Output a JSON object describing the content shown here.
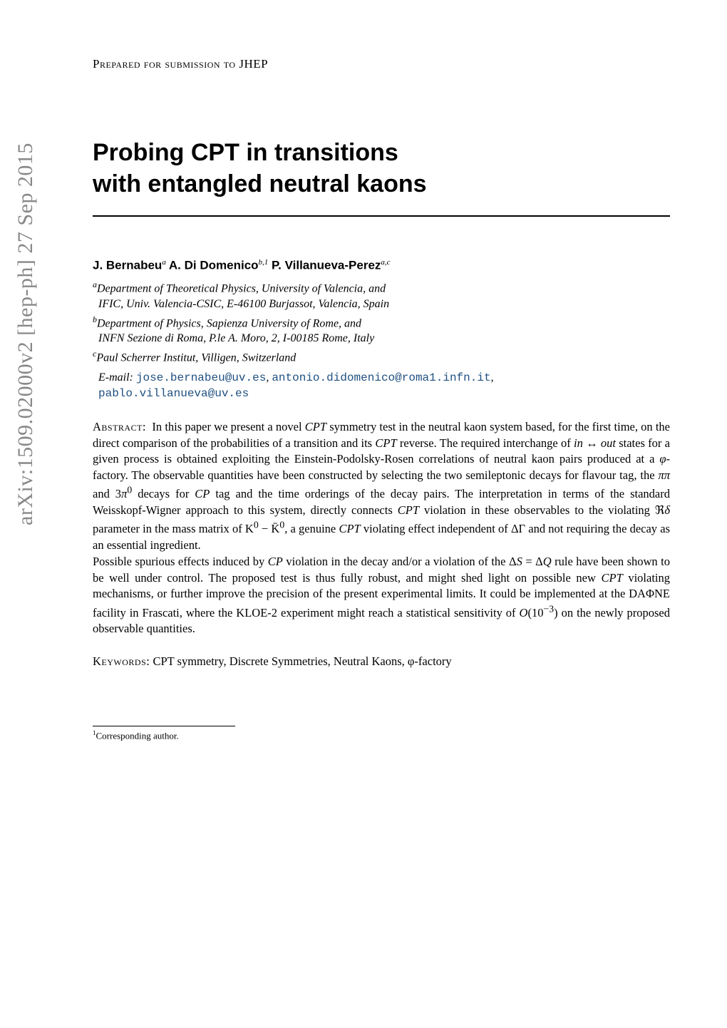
{
  "arxiv": "arXiv:1509.02000v2  [hep-ph]  27 Sep 2015",
  "prepared": "Prepared for submission to JHEP",
  "title_line1": "Probing CPT in transitions",
  "title_line2": "with entangled neutral kaons",
  "authors_html": "J. Bernabeu<sup>a</sup> A. Di Domenico<sup>b,1</sup> P. Villanueva-Perez<sup>a,c</sup>",
  "affiliations": [
    {
      "label": "a",
      "line1": "Department of Theoretical Physics, University of Valencia, and",
      "line2": "IFIC, Univ. Valencia-CSIC, E-46100 Burjassot, Valencia, Spain"
    },
    {
      "label": "b",
      "line1": "Department of Physics, Sapienza University of Rome, and",
      "line2": "INFN Sezione di Roma, P.le A. Moro, 2, I-00185 Rome, Italy"
    },
    {
      "label": "c",
      "line1": "Paul Scherrer Institut, Villigen, Switzerland",
      "line2": ""
    }
  ],
  "email_label": "E-mail:",
  "emails": [
    "jose.bernabeu@uv.es",
    "antonio.didomenico@roma1.infn.it",
    "pablo.villanueva@uv.es"
  ],
  "abstract_label": "Abstract:",
  "abstract_html": "In this paper we present a novel <span class=\"mathcal\">CPT</span> symmetry test in the neutral kaon system based, for the first time, on the direct comparison of the probabilities of a transition and its <span class=\"mathcal\">CPT</span> reverse. The required interchange of <em class=\"math\">in</em> ↔ <em class=\"math\">out</em> states for a given process is obtained exploiting the Einstein-Podolsky-Rosen correlations of neutral kaon pairs produced at a <em class=\"math\">φ</em>-factory. The observable quantities have been constructed by selecting the two semileptonic decays for flavour tag, the <em class=\"math\">ππ</em> and 3<em class=\"math\">π</em><sup>0</sup> decays for <span class=\"mathcal\">CP</span> tag and the time orderings of the decay pairs. The interpretation in terms of the standard Weisskopf-Wigner approach to this system, directly connects <span class=\"mathcal\">CPT</span> violation in these observables to the violating ℜ<em class=\"math\">δ</em> parameter in the mass matrix of K<sup>0</sup> − K̄<sup>0</sup>, a genuine <span class=\"mathcal\">CPT</span> violating effect independent of ΔΓ and not requiring the decay as an essential ingredient.",
  "abstract_para2_html": "Possible spurious effects induced by <span class=\"mathcal\">CP</span> violation in the decay and/or a violation of the Δ<em class=\"math\">S</em> = Δ<em class=\"math\">Q</em> rule have been shown to be well under control. The proposed test is thus fully robust, and might shed light on possible new <span class=\"mathcal\">CPT</span> violating mechanisms, or further improve the precision of the present experimental limits. It could be implemented at the DAΦNE facility in Frascati, where the KLOE-2 experiment might reach a statistical sensitivity of <span class=\"mathcal\">O</span>(10<sup>−3</sup>) on the newly proposed observable quantities.",
  "keywords_label": "Keywords:",
  "keywords_text": "CPT symmetry, Discrete Symmetries, Neutral Kaons, φ-factory",
  "footnote": "Corresponding author.",
  "footnote_marker": "1",
  "colors": {
    "background": "#ffffff",
    "text": "#000000",
    "arxiv_gray": "#888888",
    "email_link": "#205080"
  },
  "fonts": {
    "body": "Times New Roman",
    "headings": "Arial/Helvetica sans-serif",
    "mono": "Courier New"
  }
}
